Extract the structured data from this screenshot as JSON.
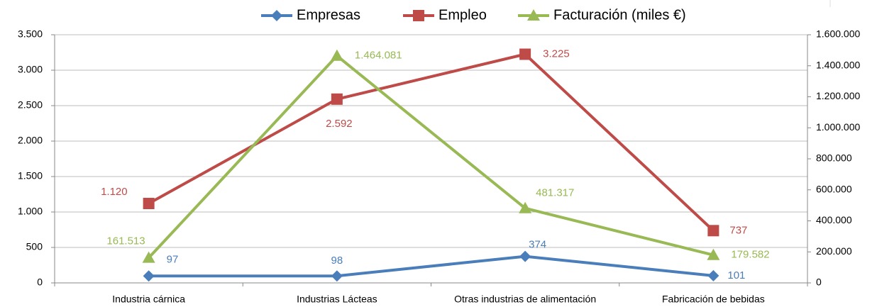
{
  "chart_data": {
    "type": "line",
    "categories": [
      "Industria cárnica",
      "Industrias Lácteas",
      "Otras industrias de alimentación",
      "Fabricación de bebidas"
    ],
    "series": [
      {
        "name": "Empresas",
        "color": "#4a7ebb",
        "marker": "diamond",
        "values": [
          97,
          98,
          374,
          101
        ]
      },
      {
        "name": "Empleo",
        "color": "#be4b48",
        "marker": "square",
        "values": [
          1120,
          2592,
          3225,
          737
        ],
        "value_labels": [
          "1.120",
          "2.592",
          "3.225",
          "737"
        ]
      },
      {
        "name": "Facturación (miles €)",
        "color": "#98b954",
        "marker": "triangle",
        "axis": "y2",
        "values": [
          161513,
          1464081,
          481317,
          179582
        ],
        "value_labels": [
          "161.513",
          "1.464.081",
          "481.317",
          "179.582"
        ]
      }
    ],
    "ylim": [
      0,
      3500
    ],
    "yticks": [
      0,
      500,
      {
        "value": 1000,
        "label": "1.000"
      },
      {
        "value": 1500,
        "label": "1.500"
      },
      {
        "value": 2000,
        "label": "2.000"
      },
      {
        "value": 2500,
        "label": "2.500"
      },
      {
        "value": 3000,
        "label": "3.000"
      },
      {
        "value": 3500,
        "label": "3.500"
      }
    ],
    "y2lim": [
      0,
      1600000
    ],
    "y2ticks": [
      0,
      {
        "value": 200000,
        "label": "200.000"
      },
      {
        "value": 400000,
        "label": "400.000"
      },
      {
        "value": 600000,
        "label": "600.000"
      },
      {
        "value": 800000,
        "label": "800.000"
      },
      {
        "value": 1000000,
        "label": "1.000.000"
      },
      {
        "value": 1200000,
        "label": "1.200.000"
      },
      {
        "value": 1400000,
        "label": "1.400.000"
      },
      {
        "value": 1600000,
        "label": "1.600.000"
      }
    ],
    "grid": true,
    "legend": "top"
  }
}
